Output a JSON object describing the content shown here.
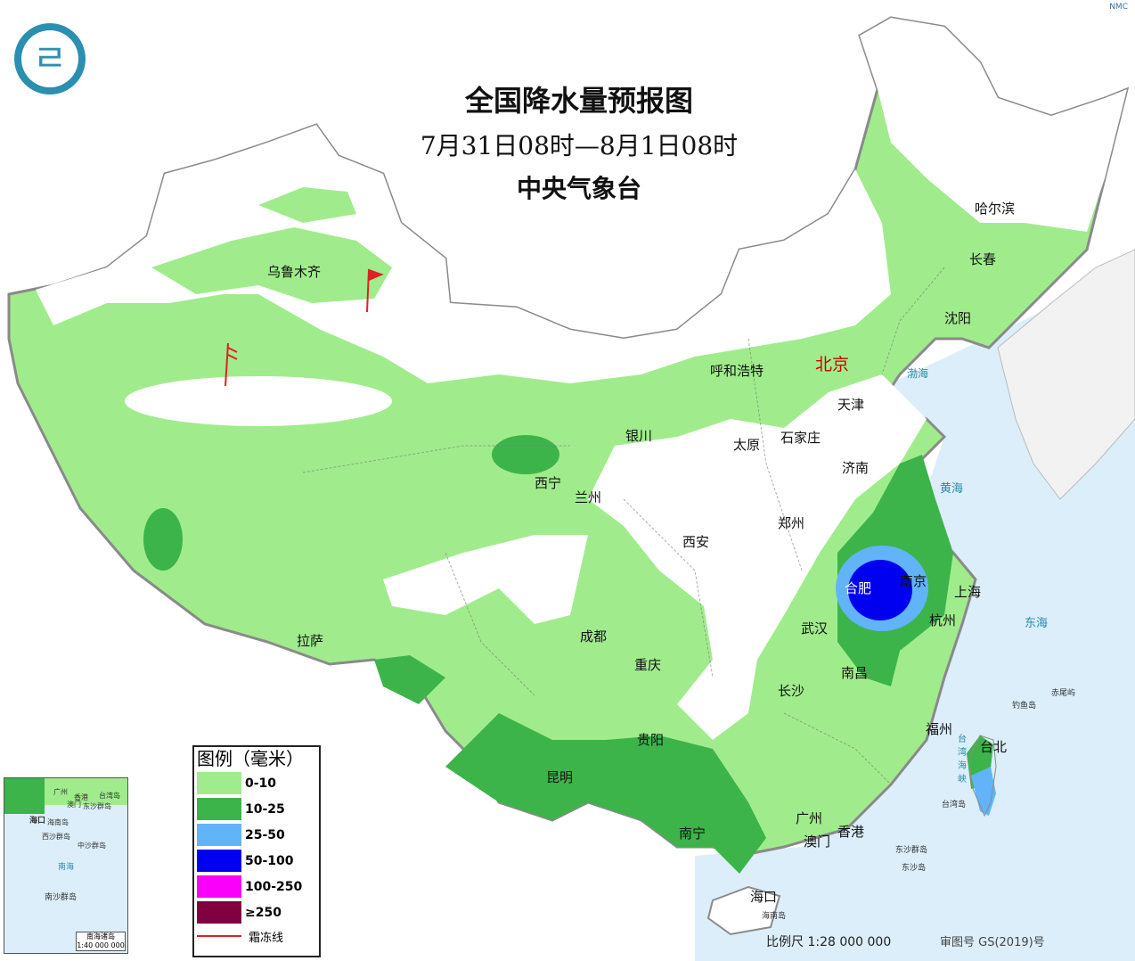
{
  "header": {
    "title": "全国降水量预报图",
    "period": "7月31日08时—8月1日08时",
    "issuer": "中央气象台",
    "corner_mark": "NMC",
    "logo_icon": "cma-logo-icon"
  },
  "cities": {
    "urumqi": "乌鲁木齐",
    "lhasa": "拉萨",
    "xining": "西宁",
    "lanzhou": "兰州",
    "yinchuan": "银川",
    "hohhot": "呼和浩特",
    "beijing": "北京",
    "tianjin": "天津",
    "shijiazhuang": "石家庄",
    "taiyuan": "太原",
    "jinan": "济南",
    "zhengzhou": "郑州",
    "xian": "西安",
    "chengdu": "成都",
    "chongqing": "重庆",
    "wuhan": "武汉",
    "hefei": "合肥",
    "nanjing": "南京",
    "shanghai": "上海",
    "hangzhou": "杭州",
    "nanchang": "南昌",
    "changsha": "长沙",
    "fuzhou": "福州",
    "taipei": "台北",
    "guiyang": "贵阳",
    "kunming": "昆明",
    "nanning": "南宁",
    "guangzhou": "广州",
    "hongkong": "香港",
    "macau": "澳门",
    "haikou": "海口",
    "shenyang": "沈阳",
    "changchun": "长春",
    "harbin": "哈尔滨"
  },
  "seas": {
    "bohai": "渤海",
    "yellow_sea": "黄海",
    "east_sea": "东海",
    "taiwan_strait": "台湾海峡",
    "taiwan_island": "台湾岛",
    "diaoyu": "钓鱼岛",
    "chiwei": "赤尾屿",
    "dongsha_islands": "东沙群岛",
    "dongsha_island": "东沙岛",
    "hainan_island": "海南岛"
  },
  "legend": {
    "title": "图例（毫米）",
    "items": [
      {
        "label": "0-10",
        "color": "#a0ec8c"
      },
      {
        "label": "10-25",
        "color": "#3cb44a"
      },
      {
        "label": "25-50",
        "color": "#62b4f8"
      },
      {
        "label": "50-100",
        "color": "#0000f0"
      },
      {
        "label": "100-250",
        "color": "#fa00fa"
      },
      {
        "label": "≥250",
        "color": "#800040"
      }
    ],
    "frost_line": "霜冻线",
    "frost_color": "#dd2222"
  },
  "inset": {
    "hainan": "海口",
    "hainan_island": "海南岛",
    "xisha": "西沙群岛",
    "zhongsha": "中沙群岛",
    "nanhai": "南海",
    "nansha": "南沙群岛",
    "caption": "南海诸岛",
    "scale": "1:40 000 000",
    "hk": "香港",
    "macau": "澳门",
    "guangzhou": "广州",
    "taiwan": "台湾岛",
    "dongsha": "东沙群岛"
  },
  "footer": {
    "scale": "比例尺 1:28 000 000",
    "approval": "审图号 GS(2019)号"
  }
}
